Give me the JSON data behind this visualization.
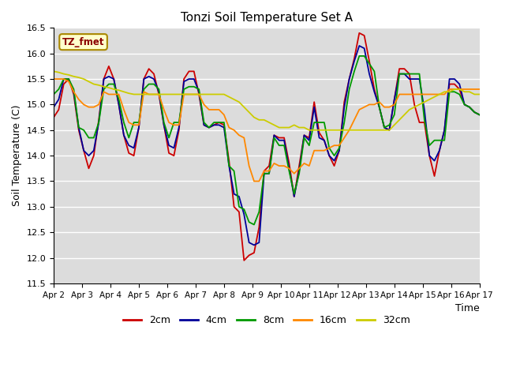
{
  "title": "Tonzi Soil Temperature Set A",
  "xlabel": "Time",
  "ylabel": "Soil Temperature (C)",
  "ylim": [
    11.5,
    16.5
  ],
  "background_color": "#dcdcdc",
  "legend_label": "TZ_fmet",
  "series_colors": {
    "2cm": "#cc0000",
    "4cm": "#000099",
    "8cm": "#009900",
    "16cm": "#ff8800",
    "32cm": "#cccc00"
  },
  "xtick_labels": [
    "Apr 2",
    "Apr 3",
    "Apr 4",
    "Apr 5",
    "Apr 6",
    "Apr 7",
    "Apr 8",
    "Apr 9",
    "Apr 10",
    "Apr 11",
    "Apr 12",
    "Apr 13",
    "Apr 14",
    "Apr 15",
    "Apr 16",
    "Apr 17"
  ],
  "data_2cm": [
    14.75,
    14.9,
    15.4,
    15.5,
    15.2,
    14.5,
    14.1,
    13.75,
    14.0,
    14.7,
    15.5,
    15.75,
    15.5,
    15.0,
    14.4,
    14.05,
    14.0,
    14.55,
    15.5,
    15.7,
    15.6,
    15.2,
    14.6,
    14.05,
    14.0,
    14.5,
    15.5,
    15.65,
    15.65,
    15.2,
    14.6,
    14.55,
    14.6,
    14.65,
    14.6,
    13.9,
    13.0,
    12.9,
    11.95,
    12.05,
    12.1,
    12.6,
    13.7,
    13.8,
    14.4,
    14.35,
    14.35,
    13.85,
    13.2,
    13.8,
    14.4,
    14.35,
    15.05,
    14.45,
    14.3,
    14.0,
    13.8,
    14.1,
    15.05,
    15.5,
    15.9,
    16.4,
    16.35,
    15.85,
    15.3,
    14.95,
    14.55,
    14.5,
    15.1,
    15.7,
    15.7,
    15.6,
    15.0,
    14.65,
    14.65,
    14.0,
    13.6,
    14.1,
    14.5,
    15.4,
    15.4,
    15.3,
    15.0,
    14.95,
    14.85,
    14.8
  ],
  "data_4cm": [
    14.95,
    15.1,
    15.5,
    15.5,
    15.25,
    14.55,
    14.1,
    14.0,
    14.1,
    14.65,
    15.5,
    15.55,
    15.5,
    15.0,
    14.4,
    14.2,
    14.15,
    14.55,
    15.5,
    15.55,
    15.5,
    15.25,
    14.6,
    14.2,
    14.15,
    14.55,
    15.45,
    15.5,
    15.5,
    15.25,
    14.6,
    14.55,
    14.6,
    14.6,
    14.55,
    13.8,
    13.25,
    13.2,
    12.85,
    12.3,
    12.25,
    12.3,
    13.65,
    13.65,
    14.4,
    14.3,
    14.3,
    13.75,
    13.2,
    13.7,
    14.4,
    14.3,
    14.95,
    14.35,
    14.3,
    14.0,
    13.9,
    14.1,
    14.95,
    15.5,
    15.85,
    16.15,
    16.1,
    15.6,
    15.25,
    14.95,
    14.55,
    14.5,
    15.1,
    15.6,
    15.6,
    15.5,
    15.5,
    15.5,
    14.9,
    14.0,
    13.9,
    14.1,
    14.5,
    15.5,
    15.5,
    15.4,
    15.0,
    14.95,
    14.85,
    14.8
  ],
  "data_8cm": [
    15.2,
    15.3,
    15.5,
    15.5,
    15.3,
    14.55,
    14.5,
    14.35,
    14.35,
    14.65,
    15.3,
    15.4,
    15.4,
    15.1,
    14.65,
    14.35,
    14.65,
    14.65,
    15.3,
    15.4,
    15.4,
    15.3,
    14.65,
    14.35,
    14.65,
    14.65,
    15.3,
    15.35,
    15.35,
    15.3,
    14.65,
    14.55,
    14.65,
    14.65,
    14.65,
    13.8,
    13.7,
    13.0,
    12.95,
    12.7,
    12.65,
    12.9,
    13.65,
    13.65,
    14.35,
    14.2,
    14.2,
    13.7,
    13.25,
    13.65,
    14.35,
    14.2,
    14.65,
    14.65,
    14.65,
    14.15,
    14.0,
    14.15,
    14.65,
    15.3,
    15.65,
    15.95,
    15.95,
    15.8,
    15.65,
    14.95,
    14.55,
    14.6,
    14.8,
    15.6,
    15.6,
    15.6,
    15.6,
    15.6,
    14.7,
    14.2,
    14.3,
    14.3,
    14.3,
    15.25,
    15.25,
    15.2,
    15.0,
    14.95,
    14.85,
    14.8
  ],
  "data_16cm": [
    15.5,
    15.5,
    15.5,
    15.45,
    15.25,
    15.1,
    15.0,
    14.95,
    14.95,
    15.0,
    15.25,
    15.2,
    15.2,
    15.2,
    14.9,
    14.65,
    14.6,
    14.6,
    15.25,
    15.2,
    15.2,
    15.2,
    14.9,
    14.65,
    14.6,
    14.6,
    15.2,
    15.2,
    15.2,
    15.2,
    15.0,
    14.9,
    14.9,
    14.9,
    14.8,
    14.55,
    14.5,
    14.4,
    14.35,
    13.8,
    13.5,
    13.5,
    13.7,
    13.7,
    13.85,
    13.8,
    13.8,
    13.75,
    13.65,
    13.75,
    13.85,
    13.8,
    14.1,
    14.1,
    14.1,
    14.15,
    14.2,
    14.2,
    14.35,
    14.5,
    14.7,
    14.9,
    14.95,
    15.0,
    15.0,
    15.05,
    14.95,
    14.95,
    15.0,
    15.2,
    15.2,
    15.2,
    15.2,
    15.2,
    15.2,
    15.2,
    15.2,
    15.2,
    15.2,
    15.3,
    15.3,
    15.3,
    15.3,
    15.3,
    15.3,
    15.3
  ],
  "data_32cm": [
    15.65,
    15.63,
    15.6,
    15.58,
    15.55,
    15.53,
    15.5,
    15.45,
    15.4,
    15.38,
    15.35,
    15.33,
    15.3,
    15.28,
    15.25,
    15.22,
    15.2,
    15.2,
    15.2,
    15.2,
    15.2,
    15.2,
    15.2,
    15.2,
    15.2,
    15.2,
    15.2,
    15.2,
    15.2,
    15.2,
    15.2,
    15.2,
    15.2,
    15.2,
    15.2,
    15.15,
    15.1,
    15.05,
    14.95,
    14.85,
    14.75,
    14.7,
    14.7,
    14.65,
    14.6,
    14.55,
    14.55,
    14.55,
    14.6,
    14.55,
    14.55,
    14.5,
    14.5,
    14.5,
    14.5,
    14.5,
    14.5,
    14.5,
    14.5,
    14.5,
    14.5,
    14.5,
    14.5,
    14.5,
    14.5,
    14.5,
    14.5,
    14.5,
    14.6,
    14.7,
    14.8,
    14.9,
    14.95,
    15.0,
    15.05,
    15.1,
    15.15,
    15.2,
    15.25,
    15.25,
    15.3,
    15.3,
    15.25,
    15.25,
    15.2,
    15.2
  ]
}
